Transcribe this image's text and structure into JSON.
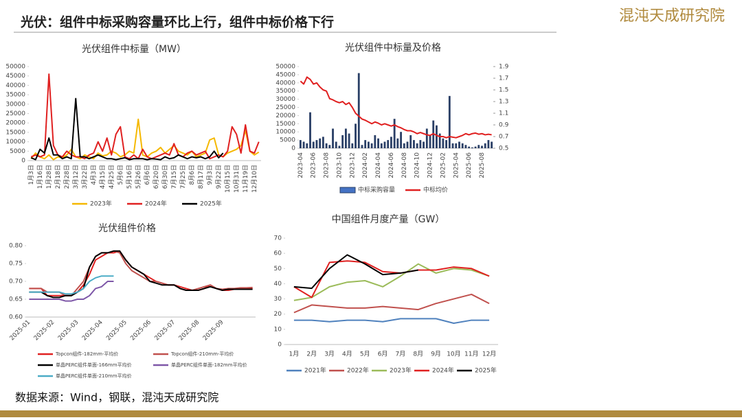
{
  "header": {
    "title": "光伏：组件中标采购容量环比上行，组件中标价格下行",
    "logo": "混沌天成研究院"
  },
  "source": "数据来源：Wind，钢联，混沌天成研究院",
  "chart_data": [
    {
      "type": "line",
      "title": "光伏组件中标量（MW）",
      "categories": [
        "1月3日",
        null,
        "1月16日",
        null,
        "1月28日",
        null,
        "2月18日",
        null,
        "2月28日",
        null,
        "3月12日",
        null,
        "3月22日",
        null,
        "4月3日",
        null,
        "4月15日",
        null,
        "4月25日",
        null,
        "5月6日",
        null,
        "5月16日",
        null,
        "5月26日",
        null,
        "6月6日",
        null,
        "6月20日",
        null,
        "6月30日",
        null,
        "7月15日",
        null,
        "7月25日",
        null,
        "8月6日",
        null,
        "8月17日",
        null,
        "9月3日",
        null,
        "9月22日",
        null,
        "10月15日",
        null,
        "10月31日",
        null,
        "11月19日",
        null,
        "12月10日",
        null
      ],
      "series": [
        {
          "name": "2023年",
          "color": "#f5b800",
          "values": [
            1000,
            4000,
            2000,
            1000,
            3000,
            500,
            2000,
            1500,
            3000,
            6000,
            2000,
            1000,
            3000,
            2000,
            1000,
            4000,
            2500,
            3000,
            5000,
            4000,
            2000,
            3000,
            5000,
            4000,
            22000,
            3000,
            2000,
            4000,
            5000,
            7000,
            4000,
            6000,
            8000,
            5000,
            4000,
            3000,
            5000,
            2000,
            3000,
            4000,
            11000,
            12000,
            3000,
            2000,
            4000,
            5000,
            6000,
            8000,
            16000,
            5000,
            3000,
            4500
          ]
        },
        {
          "name": "2024年",
          "color": "#e02020",
          "values": [
            2000,
            3000,
            2000,
            3000,
            46000,
            8000,
            3000,
            2000,
            5000,
            3000,
            2000,
            2000,
            1000,
            3000,
            4000,
            10000,
            5000,
            12000,
            3000,
            14000,
            18000,
            2000,
            1000,
            3000,
            1000,
            6000,
            2000,
            1000,
            2000,
            3000,
            4000,
            3000,
            9000,
            3000,
            2000,
            4000,
            5000,
            3000,
            4000,
            5000,
            1000,
            2000,
            3000,
            2000,
            5000,
            18000,
            14000,
            4000,
            19000,
            5000,
            4000,
            10000
          ]
        },
        {
          "name": "2025年",
          "color": "#000000",
          "values": [
            1500,
            500,
            6000,
            4000,
            12000,
            3000,
            3000,
            1000,
            2000,
            1000,
            33000,
            2000,
            2000,
            1000,
            2000,
            3000,
            2000,
            1000,
            1000,
            500,
            1000,
            1500,
            500,
            1000,
            1000,
            1000,
            500,
            1000,
            800,
            500,
            2000,
            1000,
            1500,
            3000,
            2000,
            1000,
            2000,
            1500,
            2000,
            1000,
            2000,
            5000,
            1500,
            4000,
            null,
            null,
            null,
            null,
            null,
            null,
            null,
            null
          ]
        }
      ],
      "ylim": [
        0,
        50000
      ],
      "yticks": [
        0,
        5000,
        10000,
        15000,
        20000,
        25000,
        30000,
        35000,
        40000,
        45000,
        50000
      ],
      "grid": false,
      "legend": "bottom"
    },
    {
      "type": "combo",
      "title": "光伏组件中标量及价格",
      "categories": [
        "2023-04",
        null,
        null,
        null,
        "2023-06",
        null,
        null,
        null,
        "2023-08",
        null,
        null,
        null,
        "2023-10",
        null,
        null,
        null,
        "2023-12",
        null,
        null,
        null,
        "2024-02",
        null,
        null,
        null,
        "2024-04",
        null,
        null,
        null,
        "2024-06",
        null,
        null,
        null,
        "2024-08",
        null,
        null,
        null,
        "2024-10",
        null,
        null,
        null,
        "2024-12",
        null,
        null,
        null,
        "2025-02",
        null,
        null,
        null,
        "2025-04",
        null,
        null,
        null,
        "2025-06",
        null,
        null,
        null,
        "2025-08",
        null,
        null,
        null
      ],
      "series": [
        {
          "name": "中标采购容量",
          "kind": "bar",
          "color": "#2a3f66",
          "values": [
            5000,
            4000,
            3000,
            22000,
            4000,
            5000,
            6000,
            7000,
            3000,
            2000,
            12000,
            4000,
            1500,
            8000,
            12000,
            9000,
            3000,
            15000,
            46000,
            2000,
            5000,
            4000,
            3000,
            8000,
            6000,
            3000,
            4000,
            5000,
            7000,
            18000,
            6000,
            10000,
            3000,
            4000,
            8000,
            5000,
            3000,
            5000,
            4000,
            12000,
            8000,
            17000,
            14000,
            9000,
            6000,
            5000,
            32000,
            3000,
            3000,
            4000,
            3000,
            2000,
            1000,
            500,
            1000,
            2000,
            1500,
            3000,
            5000,
            4000
          ]
        },
        {
          "name": "中标均价",
          "kind": "line",
          "axis": "y2",
          "color": "#e02020",
          "values": [
            1.65,
            1.6,
            1.72,
            1.68,
            1.6,
            1.62,
            1.55,
            1.5,
            1.48,
            1.35,
            1.33,
            1.3,
            1.28,
            1.3,
            1.25,
            1.28,
            1.2,
            1.1,
            1.05,
            1.0,
            0.98,
            0.95,
            0.92,
            0.95,
            0.93,
            0.9,
            0.92,
            0.9,
            0.88,
            0.9,
            0.87,
            0.85,
            0.82,
            0.8,
            0.8,
            0.78,
            0.75,
            0.77,
            0.75,
            0.73,
            0.72,
            0.75,
            0.72,
            0.7,
            0.7,
            0.68,
            0.7,
            0.69,
            0.68,
            0.7,
            0.72,
            0.75,
            0.73,
            0.75,
            0.76,
            0.74,
            0.75,
            0.73,
            0.74,
            0.73
          ]
        }
      ],
      "ylim": [
        0,
        50000
      ],
      "yticks": [
        0,
        5000,
        10000,
        15000,
        20000,
        25000,
        30000,
        35000,
        40000,
        45000,
        50000
      ],
      "y2lim": [
        0.5,
        1.9
      ],
      "y2ticks": [
        0.5,
        0.7,
        0.9,
        1.1,
        1.3,
        1.5,
        1.7,
        1.9
      ],
      "grid": false,
      "legend": "bottom"
    },
    {
      "type": "line",
      "title": "光伏组件价格",
      "categories": [
        "2025-01",
        null,
        null,
        null,
        "2025-02",
        null,
        null,
        null,
        "2025-03",
        null,
        null,
        null,
        "2025-04",
        null,
        null,
        null,
        "2025-05",
        null,
        null,
        null,
        "2025-06",
        null,
        null,
        null,
        "2025-07",
        null,
        null,
        null,
        "2025-08",
        null,
        null,
        null,
        "2025-09",
        null,
        null,
        null,
        null,
        null
      ],
      "series": [
        {
          "name": "Topcon组件-182mm-平均价",
          "color": "#e02020",
          "values": [
            0.68,
            0.68,
            0.68,
            0.66,
            0.66,
            0.66,
            0.66,
            0.66,
            0.67,
            0.69,
            0.72,
            0.76,
            0.77,
            0.78,
            0.78,
            0.785,
            0.76,
            0.74,
            0.73,
            0.72,
            0.71,
            0.7,
            0.695,
            0.69,
            0.69,
            0.685,
            0.68,
            0.675,
            0.675,
            0.68,
            0.69,
            0.68,
            0.675,
            0.675,
            0.678,
            0.68,
            0.68,
            0.68
          ]
        },
        {
          "name": "Topcon组件-210mm-平均价",
          "color": "#c0504d",
          "values": [
            0.68,
            0.68,
            0.68,
            0.67,
            0.67,
            0.67,
            0.66,
            0.66,
            0.68,
            0.7,
            0.74,
            0.77,
            0.78,
            0.78,
            0.785,
            0.78,
            0.75,
            0.73,
            0.72,
            0.71,
            0.7,
            0.7,
            0.695,
            0.69,
            0.69,
            0.68,
            0.675,
            0.675,
            0.68,
            0.685,
            0.69,
            0.68,
            0.678,
            0.68,
            0.68,
            0.682,
            0.682,
            0.683
          ]
        },
        {
          "name": "单晶PERC组件单面-166mm平均价",
          "color": "#000000",
          "values": [
            0.67,
            0.67,
            0.67,
            0.66,
            0.655,
            0.655,
            0.66,
            0.66,
            0.67,
            0.68,
            0.74,
            0.77,
            0.78,
            0.78,
            0.785,
            0.785,
            0.76,
            0.74,
            0.73,
            0.72,
            0.7,
            0.695,
            0.69,
            0.69,
            0.69,
            0.68,
            0.675,
            0.675,
            0.675,
            0.68,
            0.685,
            0.68,
            0.675,
            0.678,
            0.678,
            0.678,
            0.678,
            0.678
          ]
        },
        {
          "name": "单晶PERC组件单面-182mm平均价",
          "color": "#7e57a8",
          "values": [
            0.65,
            0.65,
            0.65,
            0.65,
            0.65,
            0.65,
            0.645,
            0.645,
            0.65,
            0.65,
            0.66,
            0.68,
            0.685,
            0.7,
            0.7,
            null,
            null,
            null,
            null,
            null,
            null,
            null,
            null,
            null,
            null,
            null,
            null,
            null,
            null,
            null,
            null,
            null,
            null,
            null,
            null,
            null,
            null,
            null
          ]
        },
        {
          "name": "单晶PERC组件单面-210mm平均价",
          "color": "#4bacc6",
          "values": [
            0.67,
            0.67,
            0.67,
            0.67,
            0.67,
            0.67,
            0.665,
            0.665,
            0.67,
            0.68,
            0.7,
            0.71,
            0.715,
            0.715,
            0.715,
            null,
            null,
            null,
            null,
            null,
            null,
            null,
            null,
            null,
            null,
            null,
            null,
            null,
            null,
            null,
            null,
            null,
            null,
            null,
            null,
            null,
            null,
            null
          ]
        }
      ],
      "ylim": [
        0.6,
        0.8
      ],
      "yticks": [
        {
          "value": 0.6,
          "label": "0.60"
        },
        0.65,
        {
          "value": 0.7,
          "label": "0.70"
        },
        0.75,
        {
          "value": 0.8,
          "label": "0.80"
        }
      ],
      "grid": false,
      "legend": "bottom"
    },
    {
      "type": "line",
      "title": "中国组件月度产量（GW）",
      "categories": [
        "1月",
        "2月",
        "3月",
        "4月",
        "5月",
        "6月",
        "7月",
        "8月",
        "9月",
        "10月",
        "11月",
        "12月"
      ],
      "series": [
        {
          "name": "2021年",
          "color": "#4f81bd",
          "values": [
            16,
            16,
            15,
            16,
            16,
            15,
            17,
            17,
            17,
            14,
            16,
            16
          ]
        },
        {
          "name": "2022年",
          "color": "#c0504d",
          "values": [
            21,
            26,
            25,
            24,
            24,
            25,
            24,
            23,
            27,
            30,
            33,
            27
          ]
        },
        {
          "name": "2023年",
          "color": "#9bbb59",
          "values": [
            29,
            31,
            38,
            41,
            42,
            38,
            45,
            53,
            47,
            50,
            49,
            45
          ]
        },
        {
          "name": "2024年",
          "color": "#e02020",
          "values": [
            38,
            31,
            54,
            55,
            54,
            48,
            47,
            49,
            49,
            51,
            50,
            45
          ]
        },
        {
          "name": "2025年",
          "color": "#000000",
          "values": [
            38,
            37,
            50,
            59,
            53,
            46,
            47,
            49,
            null,
            null,
            null,
            null
          ]
        }
      ],
      "ylim": [
        0,
        70
      ],
      "yticks": [
        0,
        10,
        20,
        30,
        40,
        50,
        60,
        70
      ],
      "grid": false,
      "legend": "bottom"
    }
  ]
}
